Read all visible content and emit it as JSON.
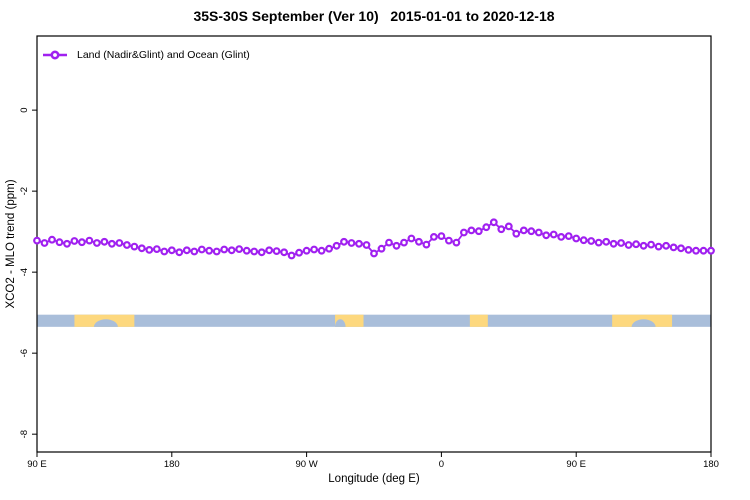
{
  "chart_data": {
    "type": "line",
    "title": "35S-30S September (Ver 10)   2015-01-01 to 2020-12-18",
    "xlabel": "Longitude (deg E)",
    "ylabel": "XCO2 - MLO trend (ppm)",
    "xlim": [
      90,
      540
    ],
    "ylim": [
      -8.44,
      1.83
    ],
    "grid": false,
    "legend_position": "top-left-inside",
    "x_ticks": [
      {
        "value": 90,
        "label": "90 E"
      },
      {
        "value": 180,
        "label": "180"
      },
      {
        "value": 270,
        "label": "90 W"
      },
      {
        "value": 360,
        "label": "0"
      },
      {
        "value": 450,
        "label": "90 E"
      },
      {
        "value": 540,
        "label": "180"
      }
    ],
    "y_ticks": [
      {
        "value": 0,
        "label": "0"
      },
      {
        "value": -2,
        "label": "-2"
      },
      {
        "value": -4,
        "label": "-4"
      },
      {
        "value": -6,
        "label": "-6"
      },
      {
        "value": -8,
        "label": "-8"
      }
    ],
    "series": [
      {
        "name": "Land (Nadir&Glint) and Ocean (Glint)",
        "color": "#A020F0",
        "marker": "open-circle",
        "x": [
          90,
          95,
          100,
          105,
          110,
          115,
          120,
          125,
          130,
          135,
          140,
          145,
          150,
          155,
          160,
          165,
          170,
          175,
          180,
          185,
          190,
          195,
          200,
          205,
          210,
          215,
          220,
          225,
          230,
          235,
          240,
          245,
          250,
          255,
          260,
          265,
          270,
          275,
          280,
          285,
          290,
          295,
          300,
          305,
          310,
          315,
          320,
          325,
          330,
          335,
          340,
          345,
          350,
          355,
          360,
          365,
          370,
          375,
          380,
          385,
          390,
          395,
          400,
          405,
          410,
          415,
          420,
          425,
          430,
          435,
          440,
          445,
          450,
          455,
          460,
          465,
          470,
          475,
          480,
          485,
          490,
          495,
          500,
          505,
          510,
          515,
          520,
          525,
          530,
          535,
          540
        ],
        "values": [
          -3.22,
          -3.28,
          -3.2,
          -3.26,
          -3.3,
          -3.23,
          -3.26,
          -3.22,
          -3.28,
          -3.25,
          -3.3,
          -3.28,
          -3.33,
          -3.37,
          -3.41,
          -3.45,
          -3.43,
          -3.49,
          -3.46,
          -3.51,
          -3.46,
          -3.49,
          -3.44,
          -3.47,
          -3.49,
          -3.44,
          -3.46,
          -3.43,
          -3.47,
          -3.49,
          -3.51,
          -3.46,
          -3.48,
          -3.51,
          -3.59,
          -3.52,
          -3.47,
          -3.44,
          -3.47,
          -3.42,
          -3.35,
          -3.25,
          -3.28,
          -3.3,
          -3.33,
          -3.54,
          -3.42,
          -3.27,
          -3.35,
          -3.27,
          -3.17,
          -3.25,
          -3.32,
          -3.13,
          -3.11,
          -3.22,
          -3.27,
          -3.02,
          -2.97,
          -2.99,
          -2.89,
          -2.77,
          -2.94,
          -2.87,
          -3.05,
          -2.97,
          -2.99,
          -3.02,
          -3.09,
          -3.07,
          -3.13,
          -3.11,
          -3.17,
          -3.21,
          -3.23,
          -3.27,
          -3.25,
          -3.3,
          -3.28,
          -3.33,
          -3.31,
          -3.35,
          -3.32,
          -3.37,
          -3.35,
          -3.39,
          -3.41,
          -3.45,
          -3.47,
          -3.47,
          -3.47
        ]
      }
    ],
    "band": {
      "description": "land-ocean strip",
      "y_top": -5.05,
      "y_bottom": -5.35,
      "ocean_color": "#A9BEDA",
      "land_color": "#FDD87E",
      "land_segments": [
        {
          "x0": 115,
          "x1": 155
        },
        {
          "x0": 289,
          "x1": 308
        },
        {
          "x0": 379,
          "x1": 391
        },
        {
          "x0": 474,
          "x1": 514
        }
      ],
      "ocean_notches": [
        {
          "x0": 128,
          "x1": 144
        },
        {
          "x0": 289,
          "x1": 296
        },
        {
          "x0": 487,
          "x1": 503
        }
      ]
    },
    "frame_color": "#000000",
    "background_color": "#ffffff"
  }
}
